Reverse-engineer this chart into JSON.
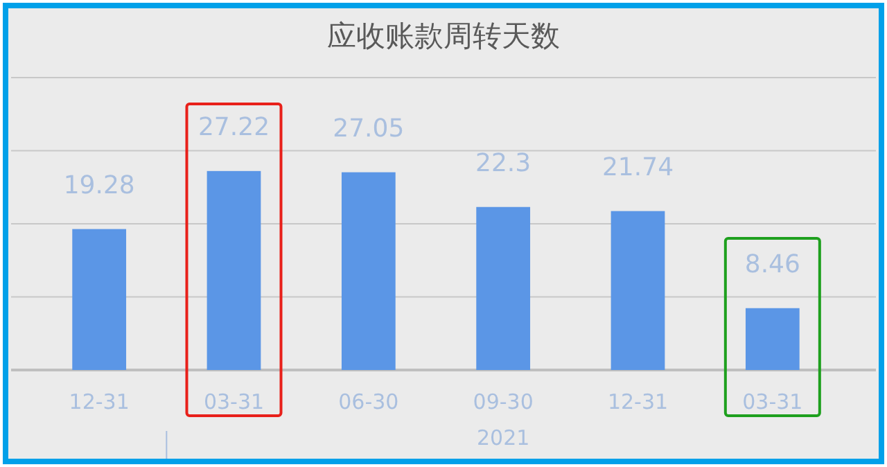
{
  "chart_data": {
    "type": "bar",
    "title": "应收账款周转天数",
    "categories": [
      "12-31",
      "03-31",
      "06-30",
      "09-30",
      "12-31",
      "03-31"
    ],
    "values": [
      19.28,
      27.22,
      27.05,
      22.3,
      21.74,
      8.46
    ],
    "color": "#5b96e6",
    "data_labels": true,
    "grid": "y",
    "tick_labels": "x",
    "ylim": [
      0,
      40
    ],
    "yticks": [
      {
        "value": 0,
        "label": null
      },
      {
        "value": 10,
        "label": null
      },
      {
        "value": 20,
        "label": null
      },
      {
        "value": 30,
        "label": null
      },
      {
        "value": 40,
        "label": null
      }
    ],
    "annotations": [
      "2021"
    ]
  }
}
